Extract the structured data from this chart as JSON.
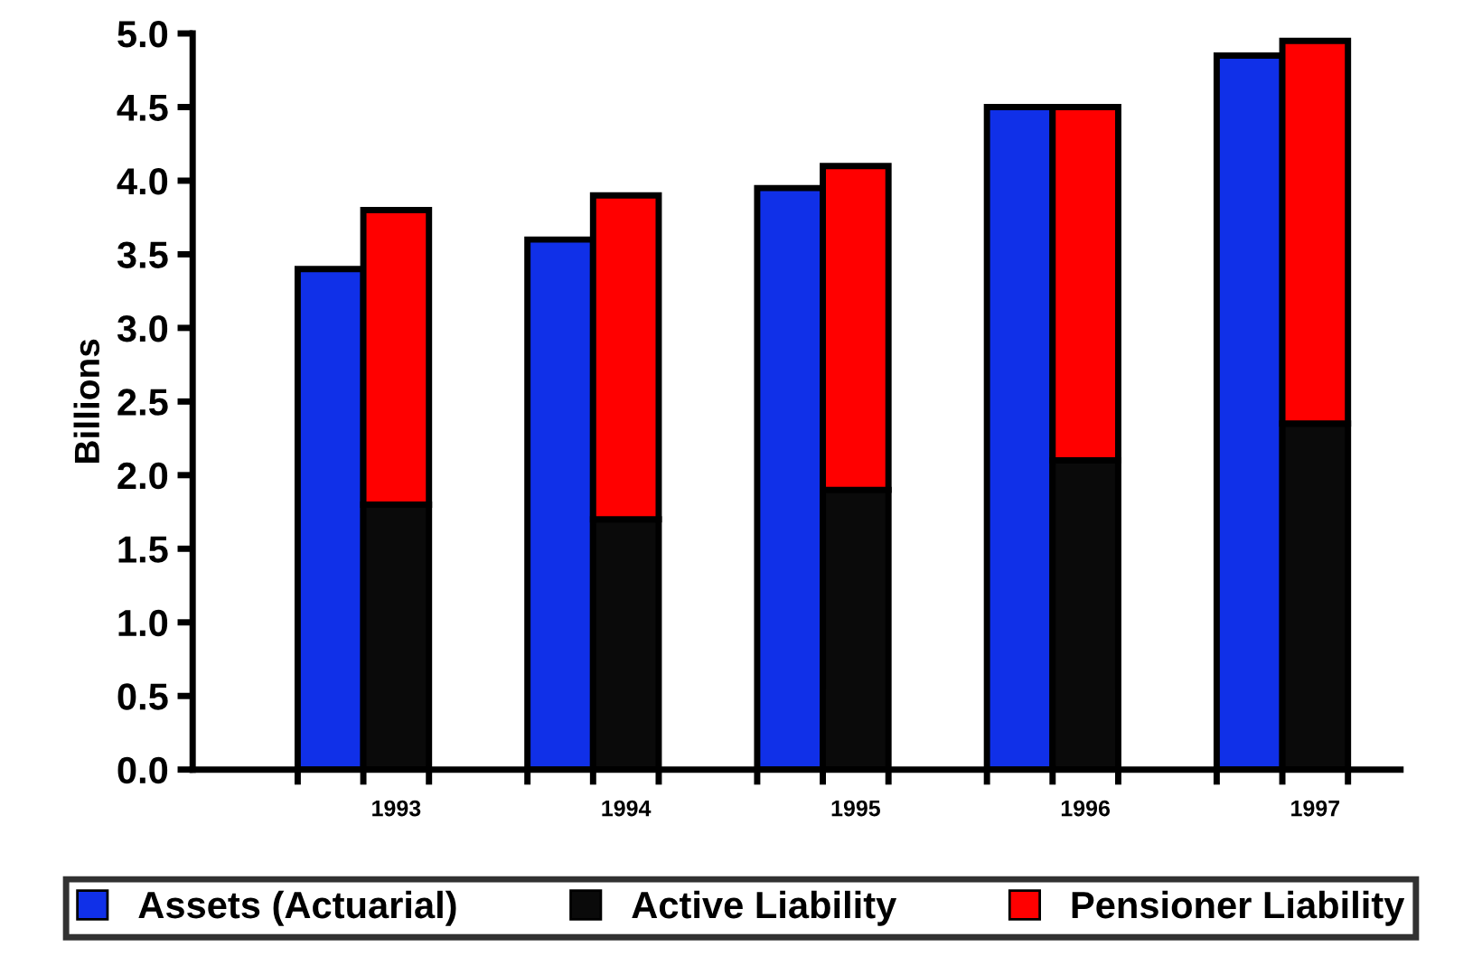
{
  "chart_data": {
    "type": "bar",
    "ylabel": "Billions",
    "categories": [
      null,
      "1993",
      null,
      "1994",
      null,
      "1995",
      null,
      "1996",
      null,
      "1997"
    ],
    "series": [
      {
        "name": "Assets (Actuarial)",
        "color": "#1030e8",
        "values": [
          3.4,
          null,
          3.6,
          null,
          3.95,
          null,
          4.5,
          null,
          4.85,
          null
        ]
      },
      {
        "name": "Active Liability",
        "color": "#0a0a0a",
        "values": [
          null,
          1.8,
          null,
          1.7,
          null,
          1.9,
          null,
          2.1,
          null,
          2.35
        ]
      },
      {
        "name": "Pensioner Liability",
        "color": "#ff0000",
        "values": [
          null,
          2.0,
          null,
          2.2,
          null,
          2.2,
          null,
          2.4,
          null,
          2.6
        ]
      }
    ],
    "stacked": true,
    "ylim": [
      0,
      5
    ],
    "yticks": [
      {
        "value": 0,
        "label": "0.0"
      },
      {
        "value": 0.5,
        "label": "0.5"
      },
      {
        "value": 1,
        "label": "1.0"
      },
      {
        "value": 1.5,
        "label": "1.5"
      },
      {
        "value": 2,
        "label": "2.0"
      },
      {
        "value": 2.5,
        "label": "2.5"
      },
      {
        "value": 3,
        "label": "3.0"
      },
      {
        "value": 3.5,
        "label": "3.5"
      },
      {
        "value": 4,
        "label": "4.0"
      },
      {
        "value": 4.5,
        "label": "4.5"
      },
      {
        "value": 5,
        "label": "5.0"
      }
    ],
    "grid": false,
    "legend": "bottom"
  }
}
